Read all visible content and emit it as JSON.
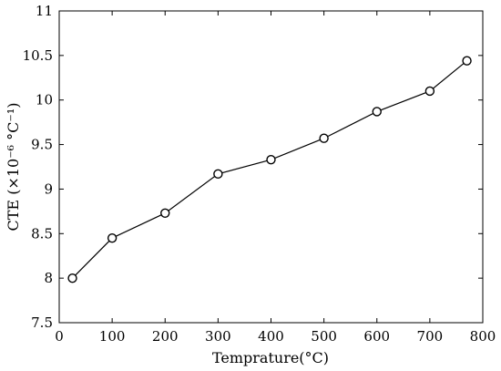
{
  "chart_data": {
    "type": "line",
    "title": "",
    "xlabel": "Temprature(°C)",
    "ylabel": "CTE (×10⁻⁶ °C⁻¹)",
    "xlim": [
      0,
      800
    ],
    "ylim": [
      7.5,
      11
    ],
    "xticks": [
      "0",
      "100",
      "200",
      "300",
      "400",
      "500",
      "600",
      "700",
      "800"
    ],
    "yticks": [
      "7.5",
      "8",
      "8.5",
      "9",
      "9.5",
      "10",
      "10.5",
      "11"
    ],
    "grid": false,
    "legend": "none",
    "marker": "open-circle",
    "line_color": "#000000",
    "series": [
      {
        "x": [
          25,
          100,
          200,
          300,
          400,
          500,
          600,
          700,
          770
        ],
        "y": [
          8.0,
          8.45,
          8.73,
          9.17,
          9.33,
          9.57,
          9.87,
          10.1,
          10.44
        ]
      }
    ]
  }
}
